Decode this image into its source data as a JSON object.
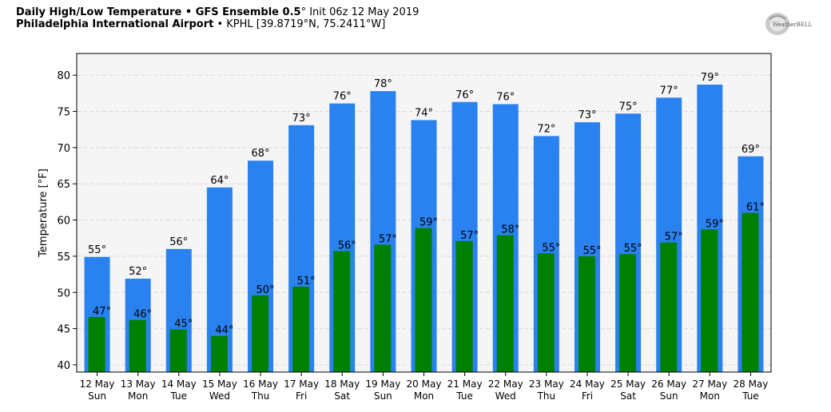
{
  "header": {
    "line1_bold": "Daily High/Low Temperature • GFS Ensemble 0.5",
    "line1_deg": "°",
    "line1_rest": " Init 06z 12 May 2019",
    "line2_bold": "Philadelphia International Airport",
    "line2_rest": " • KPHL [39.8719°N, 75.2411°W]"
  },
  "logo": {
    "text": "WeatherBELL"
  },
  "colors": {
    "high": "#2a82f0",
    "low": "#008000",
    "plot_bg": "#f5f5f5",
    "grid": "#d8d8d8"
  },
  "chart_data": {
    "type": "bar",
    "title": "Daily High/Low Temperature • GFS Ensemble 0.5° Init 06z 12 May 2019",
    "subtitle": "Philadelphia International Airport • KPHL [39.8719°N, 75.2411°W]",
    "ylabel": "Temperature [°F]",
    "xlabel": "",
    "ylim": [
      39,
      83
    ],
    "yticks": [
      40,
      45,
      50,
      55,
      60,
      65,
      70,
      75,
      80
    ],
    "grid": true,
    "categories": [
      {
        "date": "12 May",
        "day": "Sun"
      },
      {
        "date": "13 May",
        "day": "Mon"
      },
      {
        "date": "14 May",
        "day": "Tue"
      },
      {
        "date": "15 May",
        "day": "Wed"
      },
      {
        "date": "16 May",
        "day": "Thu"
      },
      {
        "date": "17 May",
        "day": "Fri"
      },
      {
        "date": "18 May",
        "day": "Sat"
      },
      {
        "date": "19 May",
        "day": "Sun"
      },
      {
        "date": "20 May",
        "day": "Mon"
      },
      {
        "date": "21 May",
        "day": "Tue"
      },
      {
        "date": "22 May",
        "day": "Wed"
      },
      {
        "date": "23 May",
        "day": "Thu"
      },
      {
        "date": "24 May",
        "day": "Fri"
      },
      {
        "date": "25 May",
        "day": "Sat"
      },
      {
        "date": "26 May",
        "day": "Sun"
      },
      {
        "date": "27 May",
        "day": "Mon"
      },
      {
        "date": "28 May",
        "day": "Tue"
      }
    ],
    "series": [
      {
        "values": [
          54.9,
          51.9,
          56.0,
          64.5,
          68.2,
          73.1,
          76.1,
          77.8,
          73.8,
          76.3,
          76.0,
          71.6,
          73.5,
          74.7,
          76.9,
          78.7,
          68.8
        ],
        "labels": [
          "55°",
          "52°",
          "56°",
          "64°",
          "68°",
          "73°",
          "76°",
          "78°",
          "74°",
          "76°",
          "76°",
          "72°",
          "73°",
          "75°",
          "77°",
          "79°",
          "69°"
        ]
      },
      {
        "values": [
          46.6,
          46.2,
          44.9,
          44.0,
          49.6,
          50.8,
          55.7,
          56.6,
          58.9,
          57.1,
          57.9,
          55.4,
          55.0,
          55.3,
          56.9,
          58.7,
          61.0
        ],
        "labels": [
          "47°",
          "46°",
          "45°",
          "44°",
          "50°",
          "51°",
          "56°",
          "57°",
          "59°",
          "57°",
          "58°",
          "55°",
          "55°",
          "55°",
          "57°",
          "59°",
          "61°"
        ]
      }
    ]
  }
}
